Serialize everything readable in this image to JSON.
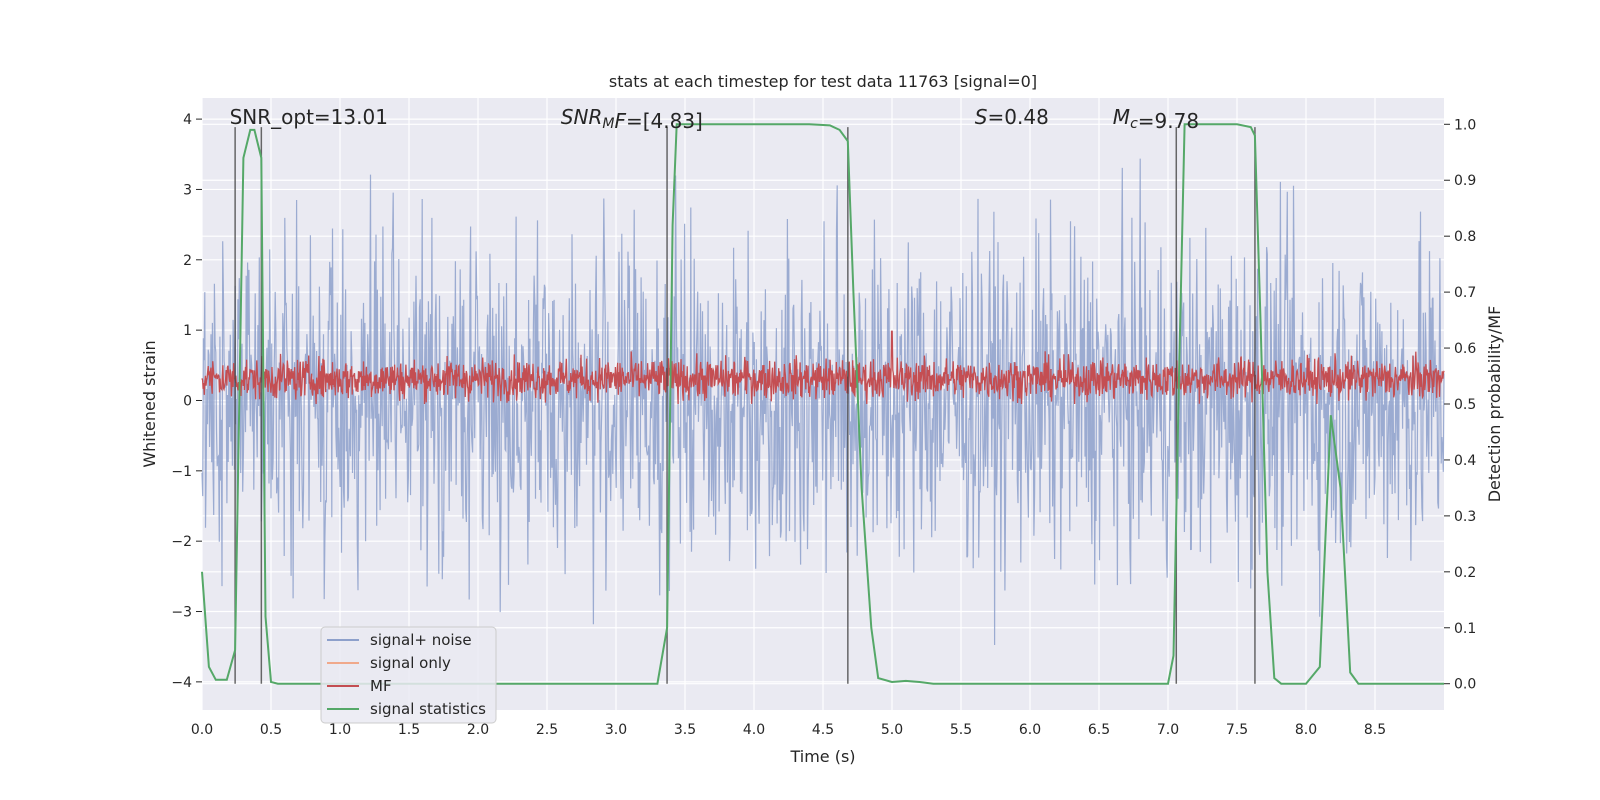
{
  "chart_data": {
    "type": "line",
    "title": "stats at each timestep for test data 11763 [signal=0]",
    "xlabel": "Time (s)",
    "ylabel_left": "Whitened strain",
    "ylabel_right": "Detection probability/MF",
    "xlim": [
      0.0,
      9.0
    ],
    "ylim_left": [
      -4.4,
      4.3
    ],
    "ylim_right": [
      -0.047,
      1.047
    ],
    "xticks": [
      "0.0",
      "0.5",
      "1.0",
      "1.5",
      "2.0",
      "2.5",
      "3.0",
      "3.5",
      "4.0",
      "4.5",
      "5.0",
      "5.5",
      "6.0",
      "6.5",
      "7.0",
      "7.5",
      "8.0",
      "8.5"
    ],
    "xtick_values": [
      0,
      0.5,
      1,
      1.5,
      2,
      2.5,
      3,
      3.5,
      4,
      4.5,
      5,
      5.5,
      6,
      6.5,
      7,
      7.5,
      8,
      8.5
    ],
    "yticks_left": [
      "4",
      "3",
      "2",
      "1",
      "0",
      "−1",
      "−2",
      "−3",
      "−4"
    ],
    "ytick_values_left": [
      4,
      3,
      2,
      1,
      0,
      -1,
      -2,
      -3,
      -4
    ],
    "yticks_right": [
      "1.0",
      "0.9",
      "0.8",
      "0.7",
      "0.6",
      "0.5",
      "0.4",
      "0.3",
      "0.2",
      "0.1",
      "0.0"
    ],
    "ytick_values_right": [
      1.0,
      0.9,
      0.8,
      0.7,
      0.6,
      0.5,
      0.4,
      0.3,
      0.2,
      0.1,
      0.0
    ],
    "grid": true,
    "legend_position": "lower-left",
    "annotations": [
      {
        "id": "snr-opt",
        "x": 0.2,
        "parts": [
          {
            "t": "SNR_opt=13.01",
            "i": false
          }
        ]
      },
      {
        "id": "snr-mf",
        "x": 2.6,
        "parts": [
          {
            "t": "SNR",
            "i": true
          },
          {
            "t": "M",
            "i": true,
            "sub": true
          },
          {
            "t": "F",
            "i": true
          },
          {
            "t": "=[4.83]",
            "i": false
          }
        ]
      },
      {
        "id": "s-value",
        "x": 5.6,
        "parts": [
          {
            "t": "S",
            "i": true
          },
          {
            "t": "=0.48",
            "i": false
          }
        ]
      },
      {
        "id": "mc-value",
        "x": 6.6,
        "parts": [
          {
            "t": "M",
            "i": true
          },
          {
            "t": "c",
            "i": true,
            "sub": true
          },
          {
            "t": "=9.78",
            "i": false
          }
        ]
      }
    ],
    "vertical_lines": [
      0.24,
      0.43,
      3.37,
      4.68,
      7.06,
      7.63
    ],
    "series": [
      {
        "name": "signal+ noise",
        "color": "#8da0cb",
        "axis": "left",
        "description": "whitened strain, dense noise spanning roughly ±3.9"
      },
      {
        "name": "signal only",
        "color": "#f0a98b",
        "axis": "left",
        "values": []
      },
      {
        "name": "MF",
        "color": "#c44e52",
        "axis": "right",
        "description": "matched filter output fluctuating between about 0.50 and 0.60, isolated spike near 0.63 at t=5.0"
      },
      {
        "name": "signal statistics",
        "color": "#55a868",
        "axis": "right",
        "x": [
          0.0,
          0.05,
          0.1,
          0.18,
          0.24,
          0.3,
          0.35,
          0.38,
          0.43,
          0.46,
          0.5,
          0.55,
          0.6,
          1.0,
          2.0,
          3.0,
          3.3,
          3.37,
          3.41,
          3.44,
          3.5,
          4.0,
          4.4,
          4.55,
          4.62,
          4.68,
          4.72,
          4.78,
          4.85,
          4.9,
          5.0,
          5.1,
          5.2,
          5.3,
          6.0,
          7.0,
          7.04,
          7.08,
          7.12,
          7.2,
          7.5,
          7.6,
          7.63,
          7.67,
          7.72,
          7.77,
          7.82,
          7.88,
          8.0,
          8.1,
          8.18,
          8.25,
          8.32,
          8.38,
          8.5,
          9.0
        ],
        "values": [
          0.2,
          0.03,
          0.007,
          0.007,
          0.06,
          0.94,
          0.99,
          0.99,
          0.94,
          0.12,
          0.003,
          0.0,
          0.0,
          0.0,
          0.0,
          0.0,
          0.0,
          0.1,
          0.82,
          1.0,
          1.0,
          1.0,
          1.0,
          0.998,
          0.99,
          0.97,
          0.7,
          0.35,
          0.1,
          0.01,
          0.003,
          0.005,
          0.003,
          0.0,
          0.0,
          0.0,
          0.05,
          0.55,
          1.0,
          1.0,
          1.0,
          0.995,
          0.98,
          0.65,
          0.2,
          0.01,
          0.0,
          0.0,
          0.0,
          0.03,
          0.48,
          0.35,
          0.02,
          0.0,
          0.0,
          0.0
        ]
      }
    ]
  }
}
